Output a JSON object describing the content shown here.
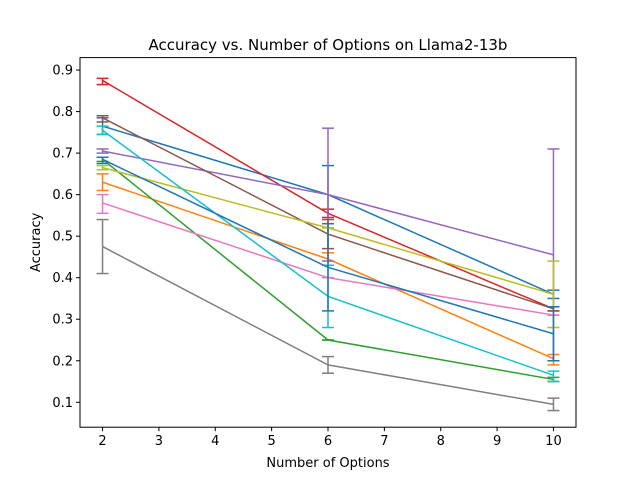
{
  "chart_data": {
    "type": "line",
    "title": "Accuracy vs. Number of Options on Llama2-13b",
    "xlabel": "Number of Options",
    "ylabel": "Accuracy",
    "x": [
      2,
      6,
      10
    ],
    "xlim": [
      1.6,
      10.4
    ],
    "ylim": [
      0.04,
      0.93
    ],
    "xticks": [
      2,
      3,
      4,
      5,
      6,
      7,
      8,
      9,
      10
    ],
    "yticks": [
      0.1,
      0.2,
      0.3,
      0.4,
      0.5,
      0.6,
      0.7,
      0.8,
      0.9
    ],
    "grid": false,
    "legend": false,
    "series": [
      {
        "color": "#1f77b4",
        "values": [
          0.765,
          0.6,
          0.36
        ],
        "err_low": [
          0.745,
          0.53,
          0.35
        ],
        "err_high": [
          0.785,
          0.67,
          0.37
        ]
      },
      {
        "color": "#ff7f0e",
        "values": [
          0.63,
          0.445,
          0.205
        ],
        "err_low": [
          0.61,
          0.43,
          0.19
        ],
        "err_high": [
          0.65,
          0.46,
          0.215
        ]
      },
      {
        "color": "#2ca02c",
        "values": [
          0.685,
          0.25,
          0.155
        ],
        "err_low": [
          0.68,
          0.25,
          0.15
        ],
        "err_high": [
          0.69,
          0.25,
          0.16
        ]
      },
      {
        "color": "#d62728",
        "values": [
          0.875,
          0.555,
          0.325
        ],
        "err_low": [
          0.865,
          0.545,
          0.32
        ],
        "err_high": [
          0.88,
          0.565,
          0.33
        ]
      },
      {
        "color": "#9467bd",
        "values": [
          0.705,
          0.6,
          0.455
        ],
        "err_low": [
          0.7,
          0.44,
          0.2
        ],
        "err_high": [
          0.71,
          0.76,
          0.71
        ]
      },
      {
        "color": "#8c564b",
        "values": [
          0.785,
          0.505,
          0.325
        ],
        "err_low": [
          0.775,
          0.47,
          0.32
        ],
        "err_high": [
          0.79,
          0.54,
          0.33
        ]
      },
      {
        "color": "#e377c2",
        "values": [
          0.58,
          0.4,
          0.31
        ],
        "err_low": [
          0.555,
          0.4,
          0.31
        ],
        "err_high": [
          0.6,
          0.4,
          0.31
        ]
      },
      {
        "color": "#7f7f7f",
        "values": [
          0.475,
          0.19,
          0.095
        ],
        "err_low": [
          0.41,
          0.17,
          0.08
        ],
        "err_high": [
          0.54,
          0.21,
          0.11
        ]
      },
      {
        "color": "#bcbd22",
        "values": [
          0.665,
          0.52,
          0.36
        ],
        "err_low": [
          0.66,
          0.52,
          0.28
        ],
        "err_high": [
          0.67,
          0.52,
          0.44
        ]
      },
      {
        "color": "#17becf",
        "values": [
          0.755,
          0.355,
          0.165
        ],
        "err_low": [
          0.745,
          0.28,
          0.15
        ],
        "err_high": [
          0.765,
          0.43,
          0.175
        ]
      },
      {
        "color": "#1f77b4",
        "values": [
          0.685,
          0.425,
          0.265
        ],
        "err_low": [
          0.675,
          0.32,
          0.2
        ],
        "err_high": [
          0.69,
          0.53,
          0.33
        ]
      }
    ]
  }
}
